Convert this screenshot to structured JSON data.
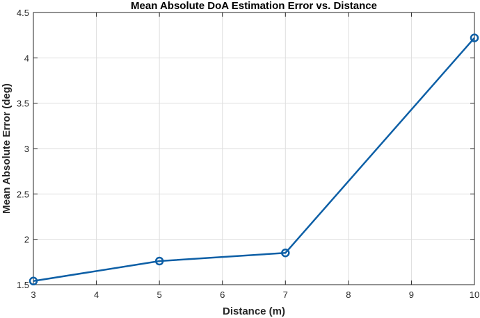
{
  "chart_data": {
    "type": "line",
    "title": "Mean Absolute DoA Estimation Error vs. Distance",
    "xlabel": "Distance (m)",
    "ylabel": "Mean Absolute Error (deg)",
    "xlim": [
      3,
      10
    ],
    "ylim": [
      1.5,
      4.5
    ],
    "xticks": [
      3,
      4,
      5,
      6,
      7,
      8,
      9,
      10
    ],
    "yticks": [
      1.5,
      2,
      2.5,
      3,
      3.5,
      4,
      4.5
    ],
    "xtick_labels": [
      "3",
      "4",
      "5",
      "6",
      "7",
      "8",
      "9",
      "10"
    ],
    "ytick_labels": [
      "1.5",
      "2",
      "2.5",
      "3",
      "3.5",
      "4",
      "4.5"
    ],
    "grid": true,
    "series": [
      {
        "x": [
          3,
          5,
          7,
          10
        ],
        "y": [
          1.54,
          1.76,
          1.85,
          4.22
        ],
        "color": "#0d5fa6",
        "marker": "circle"
      }
    ]
  }
}
